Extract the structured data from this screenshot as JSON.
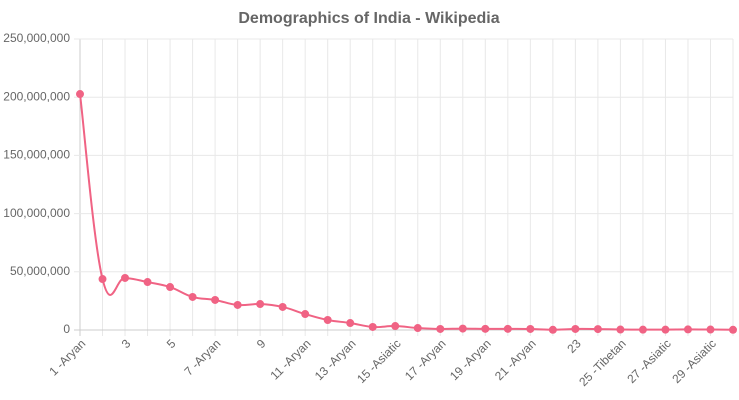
{
  "chart_data": {
    "type": "line",
    "title": "Demographics of India - Wikipedia",
    "categories": [
      "1 -Aryan",
      null,
      "3",
      null,
      "5",
      null,
      "7 -Aryan",
      null,
      "9",
      null,
      "11 -Aryan",
      null,
      "13 -Aryan",
      null,
      "15 -Asiatic",
      null,
      "17 -Aryan",
      null,
      "19 -Aryan",
      null,
      "21 -Aryan",
      null,
      "23",
      null,
      "25 -Tibetan",
      null,
      "27 -Asiatic",
      null,
      "29 -Asiatic",
      null
    ],
    "values": [
      202700000,
      43800000,
      44700000,
      41200000,
      36900000,
      28400000,
      25800000,
      21500000,
      22300000,
      19800000,
      13700000,
      8600000,
      6000000,
      2600000,
      3400000,
      1700000,
      900000,
      1200000,
      1000000,
      1000000,
      900000,
      200000,
      900000,
      800000,
      400000,
      300000,
      300000,
      500000,
      400000,
      200000
    ],
    "color": "#f06384",
    "ylim": [
      0,
      250000000
    ],
    "yticks": [
      {
        "value": 0,
        "label": "0"
      },
      {
        "value": 50000000,
        "label": "50,000,000"
      },
      {
        "value": 100000000,
        "label": "100,000,000"
      },
      {
        "value": 150000000,
        "label": "150,000,000"
      },
      {
        "value": 200000000,
        "label": "200,000,000"
      },
      {
        "value": 250000000,
        "label": "250,000,000"
      }
    ],
    "grid": true
  }
}
